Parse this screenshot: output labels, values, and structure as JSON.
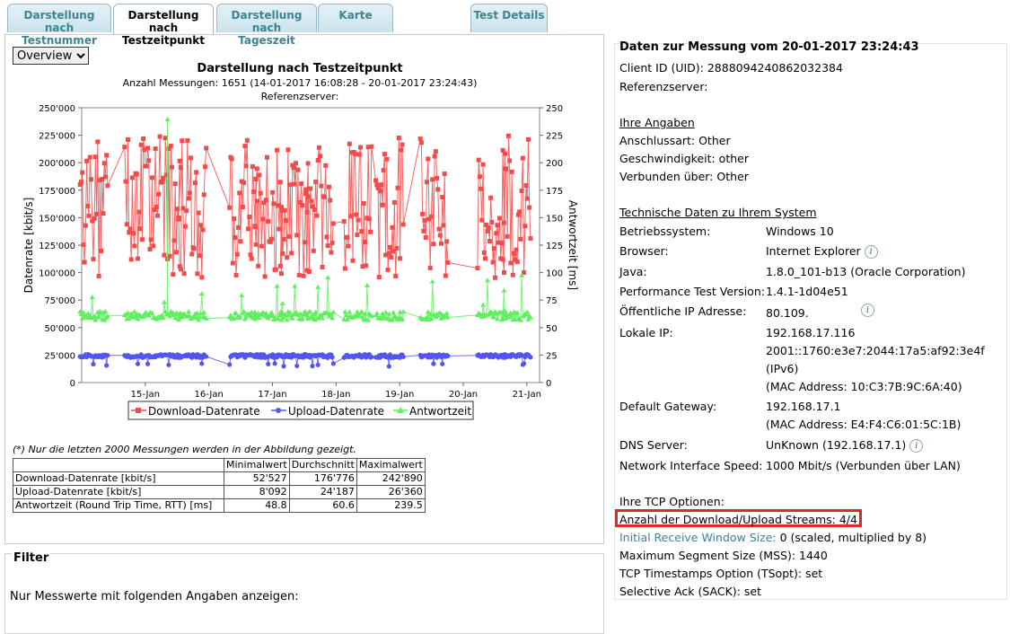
{
  "tabs": [
    {
      "line1": "Darstellung nach",
      "line2": "Testnummer",
      "active": false
    },
    {
      "line1": "Darstellung nach",
      "line2": "Testzeitpunkt",
      "active": true
    },
    {
      "line1": "Darstellung nach",
      "line2": "Tageszeit",
      "active": false
    },
    {
      "line1": "Karte",
      "line2": "",
      "active": false
    },
    {
      "line1": "Test Details",
      "line2": "",
      "active": false
    }
  ],
  "view_select": "Overview",
  "chart": {
    "title": "Darstellung nach Testzeitpunkt",
    "subtitle": "Anzahl Messungen: 1651 (14-01-2017 16:08:28 - 20-01-2017 23:24:43)",
    "server": "Referenzserver:"
  },
  "chart_data": {
    "type": "line",
    "title": "Darstellung nach Testzeitpunkt",
    "ylabel": "Datenrate [kbit/s]",
    "y2label": "Antwortzeit [ms]",
    "ylim": [
      0,
      250000
    ],
    "y2lim": [
      0,
      250
    ],
    "x_ticks": [
      "15-Jan",
      "16-Jan",
      "17-Jan",
      "18-Jan",
      "19-Jan",
      "20-Jan",
      "21-Jan"
    ],
    "y_ticks": [
      "0",
      "25'000",
      "50'000",
      "75'000",
      "100'000",
      "125'000",
      "150'000",
      "175'000",
      "200'000",
      "225'000",
      "250'000"
    ],
    "y2_ticks": [
      "0",
      "25",
      "50",
      "75",
      "100",
      "125",
      "150",
      "175",
      "200",
      "225",
      "250"
    ],
    "legend": [
      "Download-Datenrate",
      "Upload-Datenrate",
      "Antwortzeit"
    ],
    "colors": {
      "download": "#f24b4b",
      "upload": "#5555ee",
      "rtt": "#5fef5f"
    },
    "clusters_x": [
      14.2,
      14.9,
      15.35,
      15.75,
      16.55,
      16.95,
      17.35,
      17.75,
      18.35,
      18.85,
      19.55,
      20.45,
      20.85
    ],
    "download": {
      "min": 52527,
      "avg": 176776,
      "max": 242890
    },
    "upload": {
      "min": 8092,
      "avg": 24187,
      "max": 26360
    },
    "rtt": {
      "min": 48.8,
      "avg": 60.6,
      "max": 239.5
    }
  },
  "note": "(*) Nur die letzten 2000 Messungen werden in der Abbildung gezeigt.",
  "stats": {
    "headers": [
      "",
      "Minimalwert",
      "Durchschnitt",
      "Maximalwert"
    ],
    "rows": [
      [
        "Download-Datenrate [kbit/s]",
        "52'527",
        "176'776",
        "242'890"
      ],
      [
        "Upload-Datenrate [kbit/s]",
        "8'092",
        "24'187",
        "26'360"
      ],
      [
        "Antwortzeit (Round Trip Time, RTT) [ms]",
        "48.8",
        "60.6",
        "239.5"
      ]
    ]
  },
  "filter": {
    "title": "Filter",
    "text": "Nur Messwerte mit folgenden Angaben anzeigen:"
  },
  "details": {
    "title": "Daten zur Messung vom 20-01-2017 23:24:43",
    "client_id": "Client ID (UID): 2888094240862032384",
    "refserver": "Referenzserver:",
    "angaben_head": "Ihre Angaben",
    "anschlussart": "Anschlussart: Other",
    "geschwindigkeit": "Geschwindigkeit: other",
    "verbunden": "Verbunden über: Other",
    "tech_head": "Technische Daten zu Ihrem System",
    "os_label": "Betriebssystem:",
    "os_value": "Windows 10",
    "browser_label": "Browser:",
    "browser_value": "Internet Explorer",
    "java_label": "Java:",
    "java_value": "1.8.0_101-b13 (Oracle Corporation)",
    "ptv_label": "Performance Test Version:",
    "ptv_value": "1.4.1-1d04e51",
    "pubip_label": "Öffentliche IP Adresse:",
    "pubip_value": "80.109.",
    "localip_label": "Lokale IP:",
    "localip_v4": "192.168.17.116",
    "localip_v6": "2001::1760:e3e7:2044:17a5:af92:3e4f",
    "localip_v6_note": "(IPv6)",
    "localip_mac": "(MAC Address: 10:C3:7B:9C:6A:40)",
    "gw_label": "Default Gateway:",
    "gw_value": "192.168.17.1",
    "gw_mac": "(MAC Address: E4:F4:C6:01:5C:1B)",
    "dns_label": "DNS Server:",
    "dns_value": "UnKnown (192.168.17.1)",
    "nis_label": "Network Interface Speed:",
    "nis_value": "1000 Mbit/s (Verbunden über LAN)",
    "tcp_head": "Ihre TCP Optionen:",
    "streams": "Anzahl der Download/Upload Streams: 4/4",
    "irws_label": "Initial Receive Window Size:",
    "irws_value": " 0 (scaled, multiplied by 8)",
    "mss": "Maximum Segment Size (MSS): 1440",
    "tsopt": "TCP Timestamps Option (TSopt): set",
    "sack": "Selective Ack (SACK): set"
  }
}
